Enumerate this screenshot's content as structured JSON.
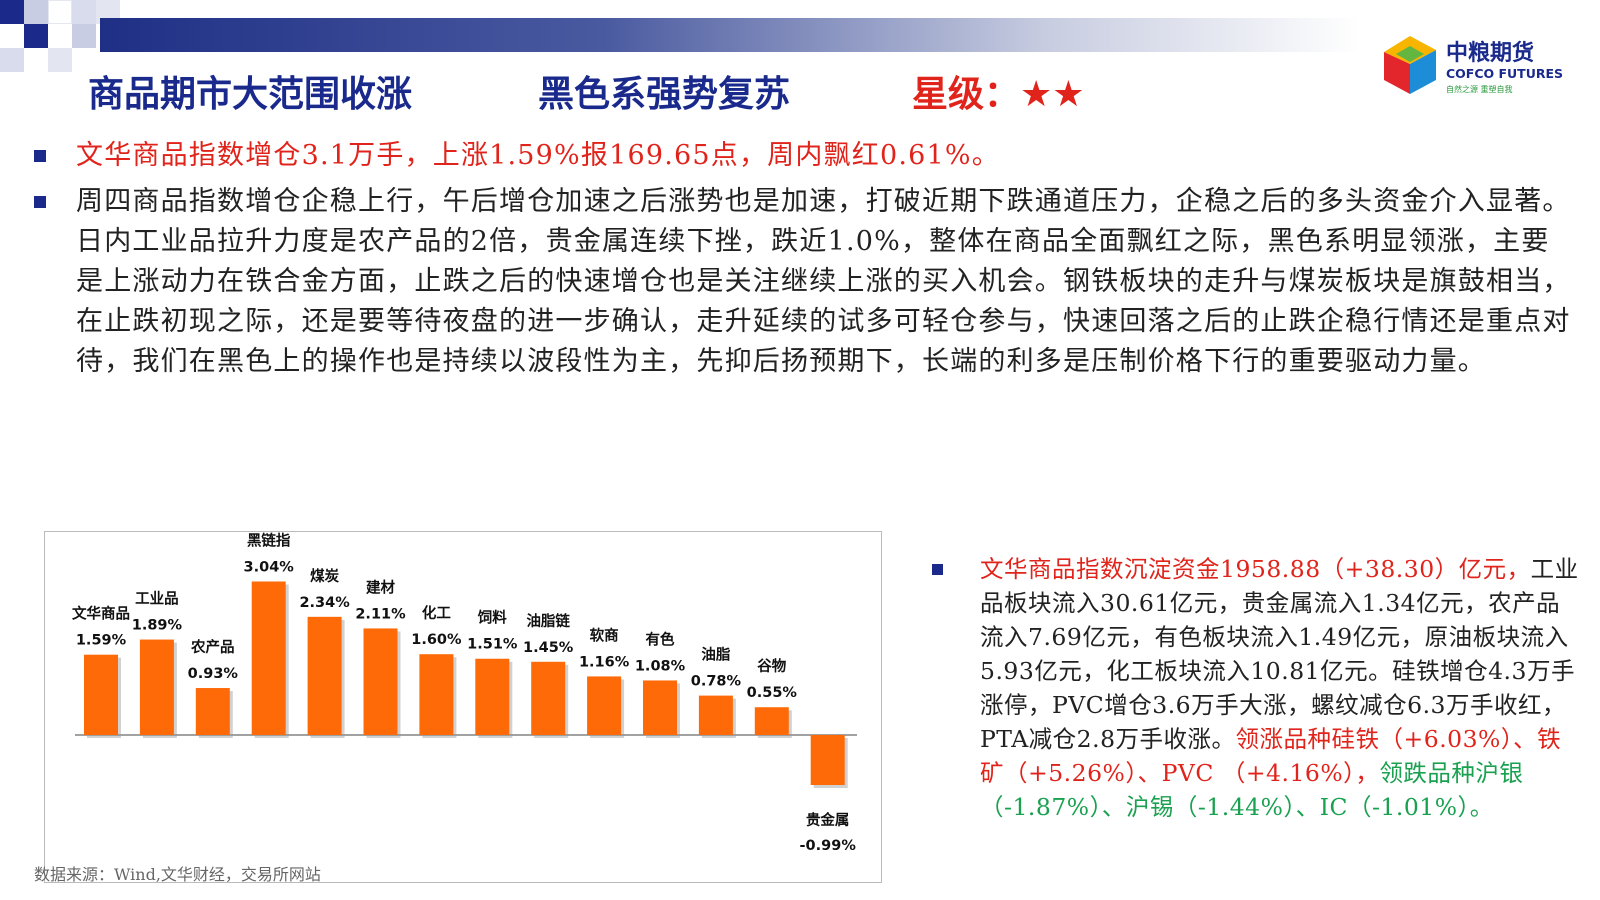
{
  "header": {
    "title1": "商品期市大范围收涨",
    "title2": "黑色系强势复苏",
    "rating_label": "星级：",
    "rating_stars": "★★"
  },
  "logo": {
    "cn": "中粮期货",
    "en": "COFCO FUTURES",
    "slogan": "自然之源  重塑自我"
  },
  "bullets": [
    {
      "text": "文华商品指数增仓3.1万手，上涨1.59%报169.65点，周内飘红0.61%。"
    },
    {
      "text": "周四商品指数增仓企稳上行，午后增仓加速之后涨势也是加速，打破近期下跌通道压力，企稳之后的多头资金介入显著。日内工业品拉升力度是农产品的2倍，贵金属连续下挫，跌近1.0%，整体在商品全面飘红之际，黑色系明显领涨，主要是上涨动力在铁合金方面，止跌之后的快速增仓也是关注继续上涨的买入机会。钢铁板块的走升与煤炭板块是旗鼓相当，在止跌初现之际，还是要等待夜盘的进一步确认，走升延续的试多可轻仓参与，快速回落之后的止跌企稳行情还是重点对待，我们在黑色上的操作也是持续以波段性为主，先抑后扬预期下，长端的利多是压制价格下行的重要驱动力量。"
    }
  ],
  "chart_data": {
    "type": "bar",
    "categories": [
      "文华商品",
      "工业品",
      "农产品",
      "黑链指",
      "煤炭",
      "建材",
      "化工",
      "饲料",
      "油脂链",
      "软商",
      "有色",
      "油脂",
      "谷物",
      "贵金属"
    ],
    "values": [
      1.59,
      1.89,
      0.93,
      3.04,
      2.34,
      2.11,
      1.6,
      1.51,
      1.45,
      1.16,
      1.08,
      0.78,
      0.55,
      -0.99
    ],
    "value_labels": [
      "1.59%",
      "1.89%",
      "0.93%",
      "3.04%",
      "2.34%",
      "2.11%",
      "1.60%",
      "1.51%",
      "1.45%",
      "1.16%",
      "1.08%",
      "0.78%",
      "0.55%",
      "-0.99%"
    ],
    "ylim": [
      -1.2,
      3.2
    ],
    "bar_color": "#ff6a08"
  },
  "source_note": "数据来源：Wind,文华财经，交易所网站",
  "right_panel": {
    "p1": "文华商品指数沉淀资金1958.88（+38.30）亿元，",
    "p2": "工业品板块流入30.61亿元，贵金属流入1.34亿元，农产品流入7.69亿元，有色板块流入1.49亿元，原油板块流入5.93亿元，化工板块流入10.81亿元。硅铁增仓4.3万手涨停，PVC增仓3.6万手大涨，螺纹减仓6.3万手收红，PTA减仓2.8万手收涨。",
    "p3": "领涨品种硅铁（+6.03%）、铁矿（+5.26%）、PVC （+4.16%），",
    "p4": "领跌品种沪银（-1.87%）、沪锡（-1.44%）、IC（-1.01%）。"
  },
  "colors": {
    "title_blue": "#1a2a8c",
    "rating_red": "#e0241b",
    "bullet_red": "#e0241b",
    "gain_red": "#e0241b",
    "loss_green": "#19a150",
    "bullet_marker": "#1b2a8a"
  }
}
